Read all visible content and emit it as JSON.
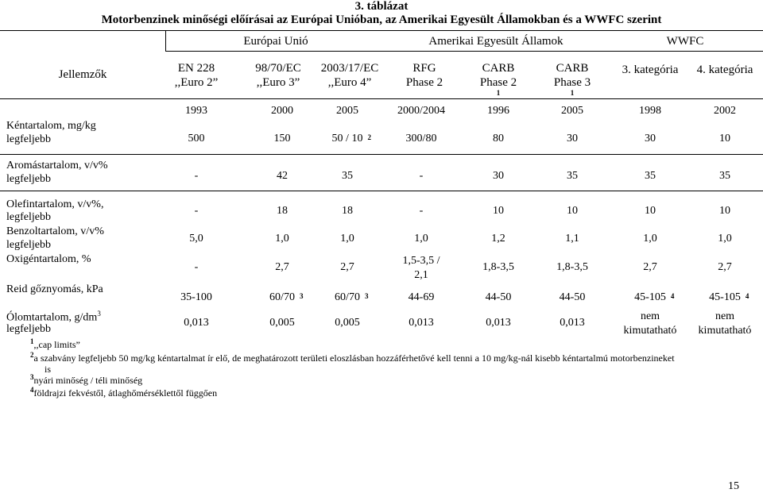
{
  "caption": {
    "number": "3. táblázat",
    "title": "Motorbenzinek minőségi előírásai az Európai Unióban, az Amerikai Egyesült Államokban és a WWFC szerint"
  },
  "header": {
    "groups": [
      "Európai Unió",
      "Amerikai Egyesült Államok",
      "WWFC"
    ],
    "row_label": "Jellemzők",
    "columns": [
      {
        "l1": "EN 228",
        "l2": ",,Euro 2”",
        "sup": ""
      },
      {
        "l1": "98/70/EC",
        "l2": ",,Euro 3”",
        "sup": ""
      },
      {
        "l1": "2003/17/EC",
        "l2": ",,Euro 4”",
        "sup": ""
      },
      {
        "l1": "RFG",
        "l2": "Phase 2",
        "sup": ""
      },
      {
        "l1": "CARB",
        "l2": "Phase 2",
        "sup": "1"
      },
      {
        "l1": "CARB",
        "l2": "Phase 3",
        "sup": "1"
      },
      {
        "l1": "3. kategória",
        "l2": "",
        "sup": ""
      },
      {
        "l1": "4. kategória",
        "l2": "",
        "sup": ""
      }
    ],
    "years": [
      "1993",
      "2000",
      "2005",
      "2000/2004",
      "1996",
      "2005",
      "1998",
      "2002"
    ]
  },
  "rows": [
    {
      "label1": "Kéntartalom, mg/kg",
      "label2": "legfeljebb",
      "values": [
        "500",
        "150",
        "50 / 10",
        "300/80",
        "80",
        "30",
        "30",
        "10"
      ],
      "sups": [
        "",
        "",
        "2",
        "",
        "",
        "",
        "",
        ""
      ]
    },
    {
      "label1": "Aromástartalom, v/v%",
      "label2": "legfeljebb",
      "values": [
        "-",
        "42",
        "35",
        "-",
        "30",
        "35",
        "35",
        "35"
      ],
      "sups": [
        "",
        "",
        "",
        "",
        "",
        "",
        "",
        ""
      ]
    },
    {
      "label1": "Olefintartalom, v/v%,",
      "label2": "legfeljebb",
      "values": [
        "-",
        "18",
        "18",
        "-",
        "10",
        "10",
        "10",
        "10"
      ],
      "sups": [
        "",
        "",
        "",
        "",
        "",
        "",
        "",
        ""
      ]
    },
    {
      "label1": "Benzoltartalom, v/v%",
      "label2": "legfeljebb",
      "values": [
        "5,0",
        "1,0",
        "1,0",
        "1,0",
        "1,2",
        "1,1",
        "1,0",
        "1,0"
      ],
      "sups": [
        "",
        "",
        "",
        "",
        "",
        "",
        "",
        ""
      ]
    },
    {
      "label1": "Oxigéntartalom, %",
      "label2": "",
      "values": [
        "-",
        "2,7",
        "2,7",
        "1,5-3,5 /\n2,1",
        "1,8-3,5",
        "1,8-3,5",
        "2,7",
        "2,7"
      ],
      "sups": [
        "",
        "",
        "",
        "",
        "",
        "",
        "",
        ""
      ]
    },
    {
      "label1": "Reid gőznyomás, kPa",
      "label2": "",
      "values": [
        "35-100",
        "60/70",
        "60/70",
        "44-69",
        "44-50",
        "44-50",
        "45-105",
        "45-105"
      ],
      "sups": [
        "",
        "3",
        "3",
        "",
        "",
        "",
        "4",
        "4"
      ]
    },
    {
      "label1": "Ólomtartalom, g/dm",
      "label1_sup": "3",
      "label2": "legfeljebb",
      "values": [
        "0,013",
        "0,005",
        "0,005",
        "0,013",
        "0,013",
        "0,013",
        "nem\nkimutatható",
        "nem\nkimutatható"
      ],
      "sups": [
        "",
        "",
        "",
        "",
        "",
        "",
        "",
        ""
      ]
    }
  ],
  "footnotes": [
    {
      "mark": "1",
      "text": ",,cap limits”"
    },
    {
      "mark": "2",
      "text": "a szabvány legfeljebb 50 mg/kg kéntartalmat ír elő, de meghatározott területi eloszlásban hozzáférhetővé kell tenni a 10 mg/kg-nál kisebb kéntartalmú motorbenzineket",
      "cont": "is"
    },
    {
      "mark": "3",
      "text": "nyári minőség / téli minőség"
    },
    {
      "mark": "4",
      "text": "földrajzi fekvéstől, átlaghőmérséklettől függően"
    }
  ],
  "page_number": "15"
}
